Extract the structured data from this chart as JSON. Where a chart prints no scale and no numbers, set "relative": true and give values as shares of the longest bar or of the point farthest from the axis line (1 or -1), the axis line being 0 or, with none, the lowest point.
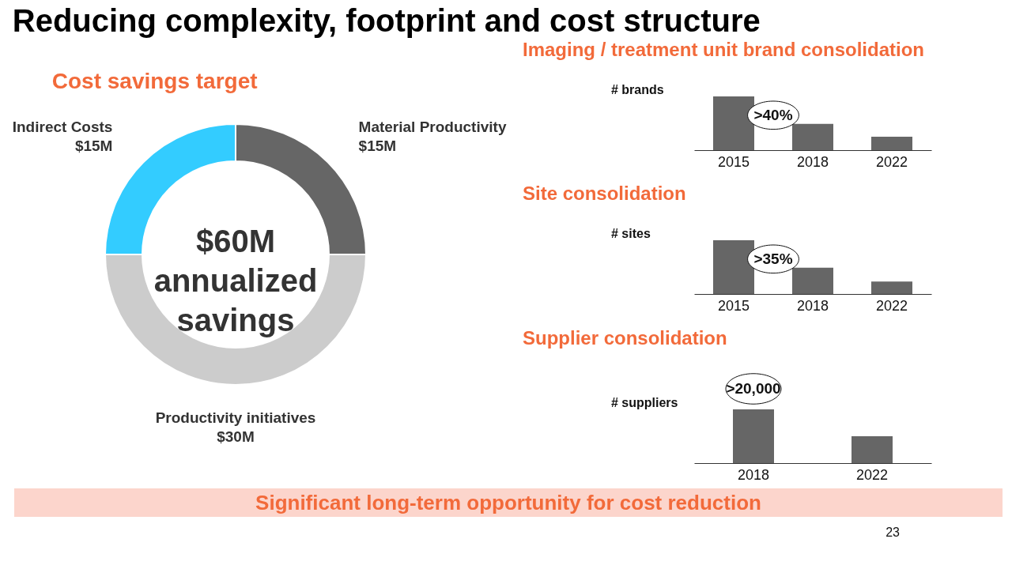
{
  "chart_data": [
    {
      "type": "donut",
      "title": "Reducing complexity, footprint and cost structure",
      "subtitle": "Cost savings target",
      "categories": [
        "Material Productivity",
        "Productivity initiatives",
        "Indirect Costs"
      ],
      "values": [
        15,
        30,
        15
      ],
      "value_labels": [
        "$15M",
        "$30M",
        "$15M"
      ],
      "colors": [
        "#666666",
        "#cccccc",
        "#33ccff"
      ],
      "annotations": [
        "$60M annualized savings",
        "Significant long-term opportunity for cost reduction",
        "23"
      ]
    },
    {
      "type": "bar",
      "title": "Imaging / treatment unit brand consolidation",
      "ylabel": "# brands",
      "relative": true,
      "categories": [
        "2015",
        "2018",
        "2022"
      ],
      "values": [
        1,
        0.49,
        0.25
      ],
      "color": "#666666",
      "annotations": [
        ">40%"
      ]
    },
    {
      "type": "bar",
      "title": "Site consolidation",
      "ylabel": "# sites",
      "relative": true,
      "categories": [
        "2015",
        "2018",
        "2022"
      ],
      "values": [
        1,
        0.49,
        0.23
      ],
      "color": "#666666",
      "annotations": [
        ">35%"
      ]
    },
    {
      "type": "bar",
      "title": "Supplier consolidation",
      "ylabel": "# suppliers",
      "relative": true,
      "categories": [
        "2018",
        "2022"
      ],
      "values": [
        1,
        0.5
      ],
      "color": "#666666",
      "annotations": [
        ">20,000"
      ]
    }
  ]
}
